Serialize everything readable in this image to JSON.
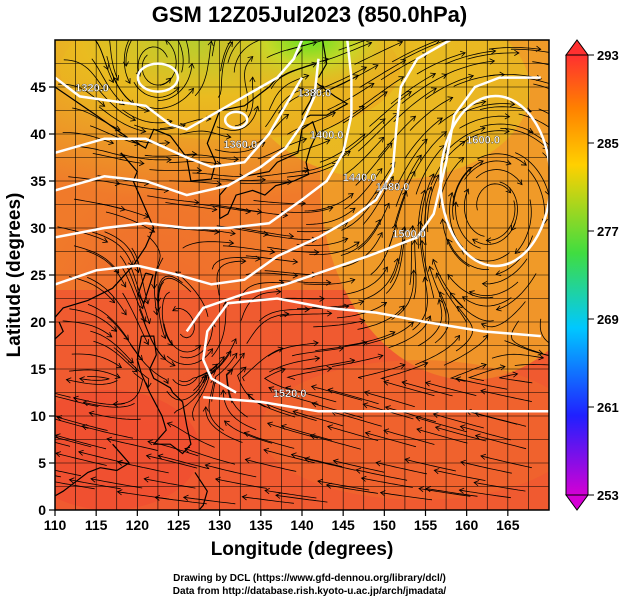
{
  "title": "GSM 12Z05Jul2023 (850.0hPa)",
  "x_axis_label": "Longitude (degrees)",
  "y_axis_label": "Latitude  (degrees)",
  "x_ticks": [
    110,
    115,
    120,
    125,
    130,
    135,
    140,
    145,
    150,
    155,
    160,
    165
  ],
  "y_ticks": [
    0,
    5,
    10,
    15,
    20,
    25,
    30,
    35,
    40,
    45
  ],
  "x_range": [
    110,
    170
  ],
  "y_range": [
    0,
    50
  ],
  "colorbar": {
    "ticks": [
      253,
      261,
      269,
      277,
      285,
      293
    ],
    "range": [
      253,
      293
    ],
    "colors": [
      "#d400d4",
      "#2020ff",
      "#00c8ff",
      "#40dd40",
      "#ffd000",
      "#ff8000",
      "#ff3030"
    ]
  },
  "contour_labels": [
    {
      "text": "1320.0",
      "lon": 114.5,
      "lat": 44.5
    },
    {
      "text": "1360.0",
      "lon": 132.5,
      "lat": 38.5
    },
    {
      "text": "1380.0",
      "lon": 141.5,
      "lat": 44.0
    },
    {
      "text": "1400.0",
      "lon": 143.0,
      "lat": 39.5
    },
    {
      "text": "1440.0",
      "lon": 147.0,
      "lat": 35.0
    },
    {
      "text": "1480.0",
      "lon": 151.0,
      "lat": 34.0
    },
    {
      "text": "1500.0",
      "lon": 153.0,
      "lat": 29.0
    },
    {
      "text": "1520.0",
      "lon": 138.5,
      "lat": 12.0
    },
    {
      "text": "1600.0",
      "lon": 162.0,
      "lat": 39.0
    }
  ],
  "credits": {
    "line1": "Drawing by DCL (https://www.gfd-dennou.org/library/dcl/)",
    "line2": "Data from http://database.rish.kyoto-u.ac.jp/arch/jmadata/"
  }
}
